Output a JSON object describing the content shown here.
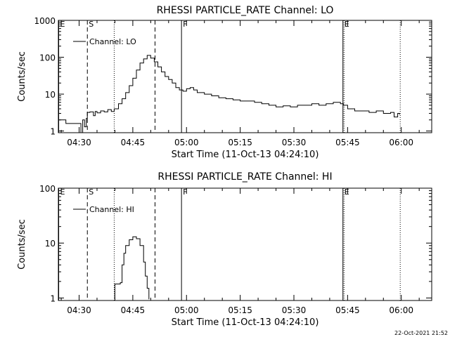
{
  "footer": {
    "timestamp": "22-Oct-2021 21:52"
  },
  "chart_data": [
    {
      "type": "line",
      "title": "RHESSI PARTICLE_RATE Channel: LO",
      "xlabel": "Start Time (11-Oct-13 04:24:10)",
      "ylabel": "Counts/sec",
      "yscale": "log",
      "ylim": [
        0.9,
        1000
      ],
      "xlim_minutes": [
        264.2,
        368.5
      ],
      "x_ticks": [
        {
          "label": "04:30",
          "value": 270
        },
        {
          "label": "04:45",
          "value": 285
        },
        {
          "label": "05:00",
          "value": 300
        },
        {
          "label": "05:15",
          "value": 315
        },
        {
          "label": "05:30",
          "value": 330
        },
        {
          "label": "05:45",
          "value": 345
        },
        {
          "label": "06:00",
          "value": 360
        }
      ],
      "y_ticks": [
        {
          "label": "1",
          "value": 1
        },
        {
          "label": "10",
          "value": 10
        },
        {
          "label": "100",
          "value": 100
        },
        {
          "label": "1000",
          "value": 1000
        }
      ],
      "legend": {
        "entry": "Channel: LO",
        "position": "top-left"
      },
      "markers": [
        {
          "label": "E",
          "value": 264.3,
          "style": "solid"
        },
        {
          "label": "S",
          "value": 272.3,
          "style": "dashed"
        },
        {
          "label": "",
          "value": 279.8,
          "style": "dotted"
        },
        {
          "label": "",
          "value": 291.2,
          "style": "dashed"
        },
        {
          "label": "F",
          "value": 298.6,
          "style": "solid"
        },
        {
          "label": "E",
          "value": 343.7,
          "style": "solid"
        },
        {
          "label": "",
          "value": 344.0,
          "style": "dotted"
        },
        {
          "label": "",
          "value": 359.7,
          "style": "dotted"
        }
      ],
      "series": [
        {
          "name": "Channel: LO",
          "x": [
            264.2,
            266,
            266.3,
            268,
            268.2,
            270,
            270.5,
            271,
            271.5,
            272,
            272.3,
            273,
            274,
            274.5,
            275,
            276,
            277,
            278,
            279,
            279.8,
            281,
            282,
            283,
            284,
            285,
            286,
            287,
            288,
            289,
            290,
            291,
            292,
            293,
            294,
            295,
            296,
            297,
            298,
            299,
            300,
            301,
            302,
            303,
            305,
            307,
            309,
            311,
            313,
            315,
            317,
            319,
            321,
            323,
            325,
            327,
            329,
            331,
            333,
            335,
            337,
            339,
            341,
            343,
            343.8,
            345,
            347,
            349,
            351,
            353,
            355,
            357,
            358,
            359,
            359.5
          ],
          "values": [
            2,
            2,
            1.6,
            1.6,
            1.6,
            1.6,
            0.9,
            2,
            1.3,
            2.2,
            3.2,
            3.3,
            2.6,
            3.4,
            3.1,
            3.5,
            3.3,
            3.8,
            3.4,
            4.0,
            5.5,
            7.5,
            11,
            17,
            27,
            45,
            70,
            90,
            112,
            95,
            75,
            55,
            40,
            30,
            25,
            20,
            15,
            13,
            12,
            14,
            15,
            13,
            11,
            10,
            9,
            8,
            7.5,
            7,
            6.5,
            6.5,
            6,
            5.5,
            5,
            4.5,
            4.8,
            4.5,
            5,
            5,
            5.5,
            5,
            5.5,
            6,
            5.5,
            5,
            4,
            3.5,
            3.5,
            3.2,
            3.5,
            3.0,
            3.2,
            2.4,
            3.0,
            2.8
          ]
        }
      ]
    },
    {
      "type": "line",
      "title": "RHESSI PARTICLE_RATE Channel: HI",
      "xlabel": "Start Time (11-Oct-13 04:24:10)",
      "ylabel": "Counts/sec",
      "yscale": "log",
      "ylim": [
        0.9,
        100
      ],
      "xlim_minutes": [
        264.2,
        368.5
      ],
      "x_ticks": [
        {
          "label": "04:30",
          "value": 270
        },
        {
          "label": "04:45",
          "value": 285
        },
        {
          "label": "05:00",
          "value": 300
        },
        {
          "label": "05:15",
          "value": 315
        },
        {
          "label": "05:30",
          "value": 330
        },
        {
          "label": "05:45",
          "value": 345
        },
        {
          "label": "06:00",
          "value": 360
        }
      ],
      "y_ticks": [
        {
          "label": "1",
          "value": 1
        },
        {
          "label": "10",
          "value": 10
        },
        {
          "label": "100",
          "value": 100
        }
      ],
      "legend": {
        "entry": "Channel: HI",
        "position": "top-left"
      },
      "markers": [
        {
          "label": "E",
          "value": 264.3,
          "style": "solid"
        },
        {
          "label": "S",
          "value": 272.3,
          "style": "dashed"
        },
        {
          "label": "",
          "value": 279.8,
          "style": "dotted"
        },
        {
          "label": "",
          "value": 291.2,
          "style": "dashed"
        },
        {
          "label": "F",
          "value": 298.6,
          "style": "solid"
        },
        {
          "label": "E",
          "value": 343.7,
          "style": "solid"
        },
        {
          "label": "",
          "value": 344.0,
          "style": "dotted"
        },
        {
          "label": "",
          "value": 359.7,
          "style": "dotted"
        }
      ],
      "series": [
        {
          "name": "Channel: HI",
          "x": [
            279.8,
            280,
            281,
            281.5,
            282,
            282.5,
            283,
            284,
            285,
            286,
            287,
            288,
            288.5,
            289,
            289.5
          ],
          "values": [
            1.0,
            1.8,
            1.8,
            1.9,
            4.0,
            6.5,
            9,
            11.5,
            13,
            12,
            9,
            4.5,
            2.5,
            1.5,
            0.95
          ]
        }
      ]
    }
  ]
}
